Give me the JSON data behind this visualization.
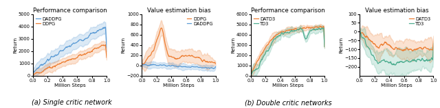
{
  "fig1_perf": {
    "title": "Performance comparison",
    "xlabel": "Million Steps",
    "ylabel": "Return",
    "xlim": [
      0,
      1.0
    ],
    "ylim": [
      0,
      5000
    ],
    "yticks": [
      0,
      1000,
      2000,
      3000,
      4000,
      5000
    ],
    "line1_label": "DADDPG",
    "line1_color": "#5b9bd5",
    "line2_label": "DDPG",
    "line2_color": "#ed7d31"
  },
  "fig1_bias": {
    "title": "Value estimation bias",
    "xlabel": "Million Steps",
    "ylabel": "Return",
    "xlim": [
      0,
      1.0
    ],
    "ylim": [
      -200,
      1000
    ],
    "yticks": [
      -200,
      0,
      200,
      400,
      600,
      800,
      1000
    ],
    "line1_label": "DADDPG",
    "line1_color": "#5b9bd5",
    "line2_label": "DDPG",
    "line2_color": "#ed7d31"
  },
  "fig2_perf": {
    "title": "Performance comparison",
    "xlabel": "Million Steps",
    "ylabel": "Return",
    "xlim": [
      0,
      1.0
    ],
    "ylim": [
      0,
      6000
    ],
    "yticks": [
      0,
      1000,
      2000,
      3000,
      4000,
      5000,
      6000
    ],
    "line1_label": "DATD3",
    "line1_color": "#ed7d31",
    "line2_label": "TD3",
    "line2_color": "#4cad8f"
  },
  "fig2_bias": {
    "title": "Value estimation bias",
    "xlabel": "Million Steps",
    "ylabel": "Return",
    "xlim": [
      0,
      1.0
    ],
    "ylim": [
      -250,
      100
    ],
    "yticks": [
      -200,
      -150,
      -100,
      -50,
      0,
      50,
      100
    ],
    "line1_label": "DATD3",
    "line1_color": "#ed7d31",
    "line2_label": "TD3",
    "line2_color": "#4cad8f"
  },
  "caption_a": "(a) Single critic network",
  "caption_b": "(b) Double critic networks"
}
